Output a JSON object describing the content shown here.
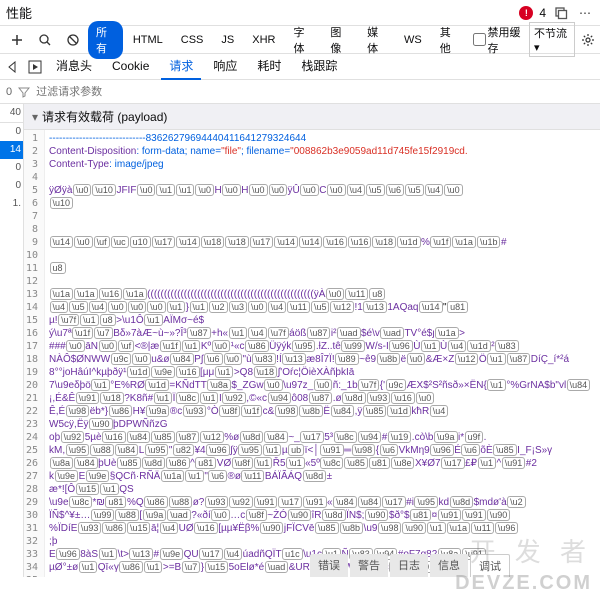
{
  "titlebar": {
    "title": "性能",
    "error_count": "4"
  },
  "toolbar1": {
    "filters": {
      "all": "所有",
      "html": "HTML",
      "css": "CSS",
      "js": "JS",
      "xhr": "XHR",
      "font": "字体",
      "image": "图像",
      "media": "媒体",
      "ws": "WS",
      "other": "其他"
    },
    "disable_cache": "禁用缓存",
    "throttle": "不节流"
  },
  "tabs": {
    "headers": "消息头",
    "cookies": "Cookie",
    "request": "请求",
    "response": "响应",
    "timings": "耗时",
    "stack": "栈跟踪"
  },
  "filter_row": {
    "count": "0",
    "placeholder": "过滤请求参数"
  },
  "leftcol": {
    "header": "40",
    "items": [
      "0",
      "14",
      "0",
      "0",
      "1.",
      ""
    ]
  },
  "section": {
    "title": "请求有效载荷 (payload)"
  },
  "code": {
    "boundary_prefix": "-----------------------------",
    "boundary_num": "83626279694440411641279324644",
    "cd_key": "Content-Disposition",
    "cd_val_main": "form-data; name=",
    "cd_name": "\"file\"",
    "cd_fname_key": "; filename=",
    "cd_fname": "\"008862b3e9059ad11d745fe15f2919cd.",
    "ct_key": "Content-Type",
    "ct_val": "image/jpeg",
    "l5_a": "ÿØÿà",
    "l5_jfif": "JFIF",
    "l5_b": "H",
    "l5_c": "H",
    "l5_d": "ÿÛ",
    "l5_e": "C",
    "l6_a": "\\u10",
    "l13_b": "ÿÀ",
    "l13_c": "\\u11",
    "l13_d": "\\u8",
    "l14_a": "ÿÄ",
    "l14_b": "1AQaq",
    "l14_c": "\"",
    "l15_a": "µ!",
    "l15_b": ">\\u1Ô",
    "l15_c": "AÏMσ~é$",
    "l16_a": "ý\\u7ª",
    "l16_b": "Bδ»7àÆ~ù~»?Î³",
    "l16_c": "+h«",
    "l16_d": "áöß",
    "l16_e": "i²",
    "l16_f": "$é\\v",
    "l16_g": "TV°é$ȷ",
    "l16_h": ">",
    "l17_a": "###",
    "l17_b": "āN",
    "l17_c": "<®|æ",
    "l17_d": "Kº",
    "l17_e": "¹«c",
    "l17_f": "Üÿýk",
    "l17_g": ".ƚZ..tê",
    "l17_h": "W/s-I",
    "l17_i": "Ù",
    "l17_j": "Ù",
    "l17_k": "²",
    "l18_a": "NÀÔ$ØNWW",
    "l18_b": "u&ø",
    "l18_c": "P∫",
    "l18_d": "\"ù",
    "l18_e": "!Í",
    "l18_f": "æ8Î7Ï!",
    "l18_g": "~ê9",
    "l18_h": "ë",
    "l18_i": "&Æ×Z",
    "l18_j": "Ö",
    "l18_k": "DíÇ_í*²á",
    "l19_a": "8°°joHâúI^kµþðÿ¹",
    "l19_b": ">Q8",
    "l19_c": "∫'Oŕc¦ÖièXÀñþkIā",
    "l20_a": "7\\u9eδþö",
    "l20_b": "°E%RØ",
    "l20_c": "=KÑdTT",
    "l20_d": "$_ZGw",
    "l20_e": "\\u97z_",
    "l20_f": "ñ:_1b",
    "l20_g": "{'",
    "l20_h": "ÆX$²S²ñsð»×ËN{",
    "l20_i": "°%GrNA$b\"vl",
    "l21_a": "¡,É&Ê",
    "l21_b": "?K8ñ#",
    "l21_c": "Ï",
    "l21_d": "I",
    "l21_e": ",©«c",
    "l21_f": "ô08",
    "l21_g": ".ø",
    "l22_a": "Ê,É",
    "l22_b": "ëb*}",
    "l22_c": "H¥",
    "l22_d": "®c",
    "l22_e": "°Ò",
    "l22_f": "c&",
    "l22_g": "Ë",
    "l22_h": ",ÿ",
    "l22_i": "kħR",
    "l23_a": "W5cÿ,Ëÿ",
    "l23_b": "þDPWÑñzG",
    "l24_a": "oþ",
    "l24_b": "5µè",
    "l24_c": "%ø",
    "l24_d": "~_",
    "l24_e": "5³",
    "l24_f": "#",
    "l24_g": ".cò\\b",
    "l24_h": "i*<H\\ÜèK»",
    "l24_i": ".",
    "l25_a": "kM,",
    "l25_b": "L",
    "l25_c": "\"",
    "l25_d": "¥4",
    "l25_e": "∫ÿ",
    "l25_f": "µ",
    "l25_g": "ï<│",
    "l25_h": "═",
    "l25_i": "{",
    "l25_j": "VkMη9",
    "l25_k": "É",
    "l25_l": "õÈ",
    "l25_m": "I_F¡S»γ",
    "l26_a": "þUè",
    "l26_b": "^",
    "l26_c": "VØ",
    "l26_d": "Ř5",
    "l26_e": "«5º",
    "l26_f": "X¥Ø7",
    "l26_g": "£₽",
    "l26_h": "^",
    "l26_i": "#2",
    "l27_a": "k",
    "l27_b": "E",
    "l27_c": "§QCñ·RÑÄ",
    "l27_d": "\"",
    "l27_e": "®ø",
    "l27_f": "BÁÏÃÁQ",
    "l27_g": "±",
    "l28_a": "æ*![Ô",
    "l28_b": "QS",
    "l29_a": "\\u9e",
    "l29_b": "*₪",
    "l29_c": "%Q",
    "l29_d": "ø?",
    "l29_e": "«",
    "l29_f": "#i",
    "l29_g": "kd",
    "l29_h": "$mdø'à",
    "l30_a": "ÏÑ$^¥±…",
    "l30_b": "[",
    "l30_c": "?«ðí",
    "l30_d": "…c",
    "l30_e": "~ŻÓ",
    "l30_f": "îR",
    "l30_g": "ÏN$;",
    "l30_h": "$ð°$",
    "l30_i": "¤",
    "l31_a": "%ÏDíE",
    "l31_b": "ā¦",
    "l31_c": "UØ",
    "l31_d": "[µµ¥Ëβ%",
    "l31_e": "jFÏCVē",
    "l31_f": "\\u9",
    "l32_a": ";þ",
    "l33_a": "E",
    "l33_b": "8àS",
    "l33_c": "\\t>",
    "l33_d": "#",
    "l33_e": "QU",
    "l33_f": "úadñQÏT",
    "l33_g": "\\u1c",
    "l33_h": "Ñ<Túühú",
    "l33_i": "#oF7g82",
    "l34_a": "µØ°±ø",
    "l34_b": "Qī«γ",
    "l34_c": ">=B",
    "l34_d": "}",
    "l34_e": "5oElø*é",
    "l34_f": "&URTLñí-4nWfx/5DŠc",
    "box_generic": "\\u10",
    "u8a": "\\u8a",
    "u1": "\\u1",
    "u0": "\\u0",
    "u5": "\\u5",
    "u6": "\\u6",
    "uf": "\\uf",
    "uc": "\\uc",
    "u14": "\\u14",
    "u17": "\\u17",
    "u18": "\\u18",
    "u1a": "\\u1a",
    "u1b": "\\u1b",
    "u1d": "\\u1d",
    "u1f": "\\u1f",
    "u11": "\\u11",
    "u13": "\\u13",
    "u16": "\\u16",
    "u7f": "\\u7f",
    "u87": "\\u87",
    "u83": "\\u83",
    "u84": "\\u84",
    "u85": "\\u85",
    "u86": "\\u86",
    "u88": "\\u88",
    "u89": "\\u89",
    "u8b": "\\u8b",
    "u8c": "\\u8c",
    "u8d": "\\u8d",
    "u8e": "\\u8e",
    "u8f": "\\u8f",
    "u90": "\\u90",
    "u91": "\\u91",
    "u92": "\\u92",
    "u93": "\\u93",
    "u94": "\\u94",
    "u95": "\\u95",
    "u96": "\\u96",
    "u97": "\\u97",
    "u98": "\\u98",
    "u99": "\\u99",
    "u9a": "\\u9a",
    "u9e": "\\u9e",
    "uad": "\\uad",
    "u12": "\\u12",
    "u15": "\\u15",
    "u19": "\\u19",
    "u3": "\\u3",
    "u4": "\\u4",
    "u7": "\\u7",
    "u9": "\\u9",
    "u2": "\\u2"
  },
  "bottom_tabs": {
    "errors": "错误",
    "warnings": "警告",
    "logs": "日志",
    "info": "信息",
    "debug": "调试"
  },
  "watermark": {
    "cn": "开 发 者",
    "en": "DEVZE.COM"
  },
  "colors": {
    "accent": "#0060df",
    "selected_bg": "#0074e8",
    "error": "#d70022",
    "header_purple": "#6b2fa0",
    "string_red": "#d93025",
    "border": "#e0e0e0"
  }
}
